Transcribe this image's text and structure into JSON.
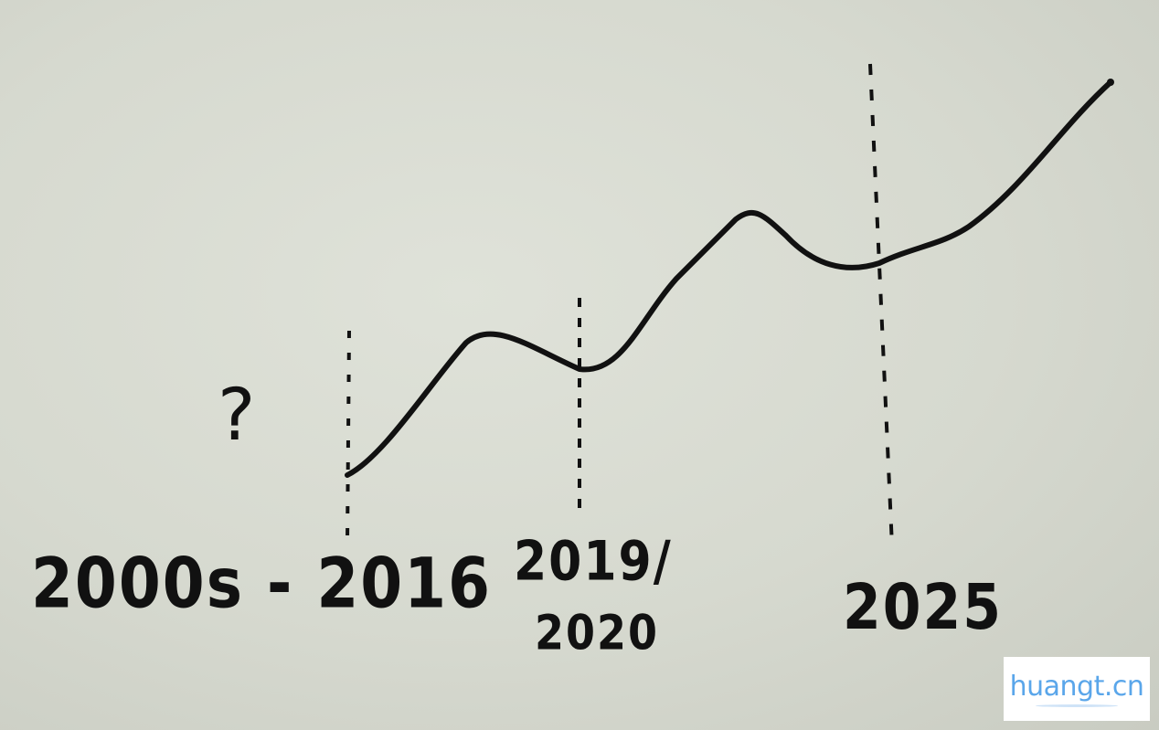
{
  "sketch": {
    "question_mark": "?",
    "labels": {
      "start": "2000s - 2016",
      "middle_line1": "2019/",
      "middle_line2": "2020",
      "end": "2025"
    },
    "ink_color": "#111111",
    "paper_color": "#d8dbd0"
  },
  "watermark": {
    "text": "huangt.cn",
    "color": "#5aa6ea"
  }
}
